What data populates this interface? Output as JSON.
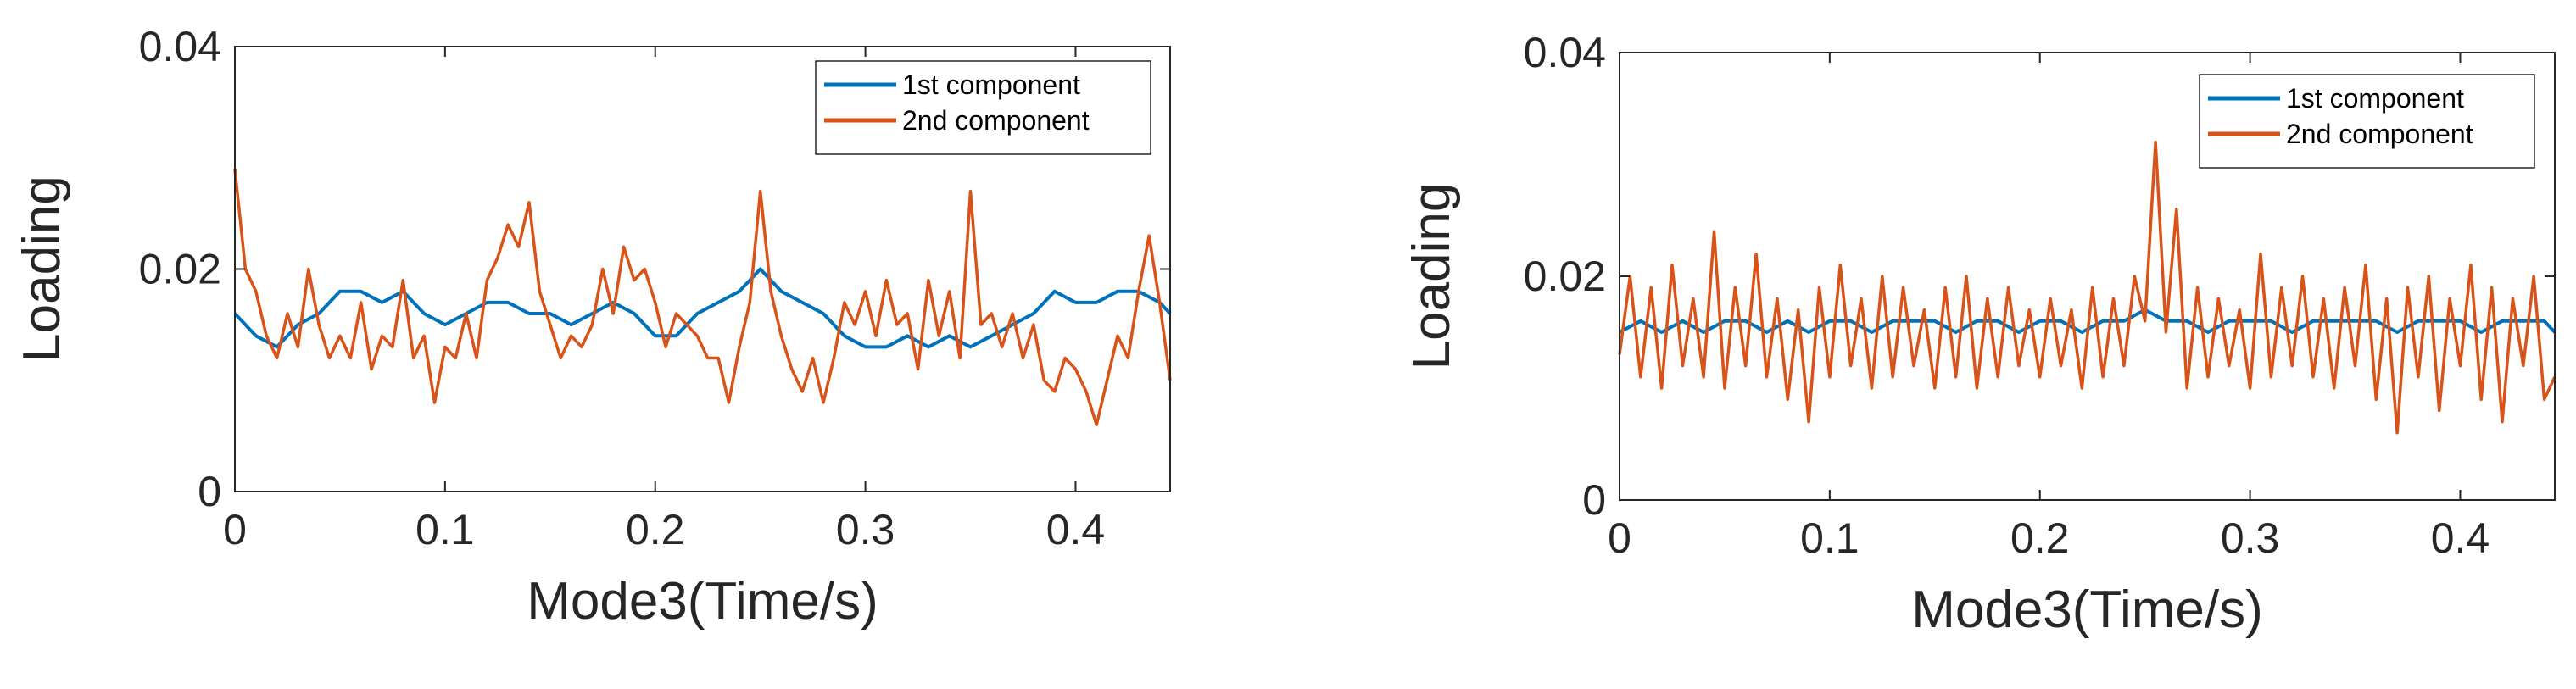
{
  "colors": {
    "series1": "#0072BD",
    "series2": "#D95319",
    "axis": "#262626"
  },
  "chart_data": [
    {
      "type": "line",
      "title": "",
      "xlabel": "Mode3(Time/s)",
      "ylabel": "Loading",
      "xlim": [
        0,
        0.445
      ],
      "ylim": [
        0,
        0.04
      ],
      "xticks": [
        0,
        0.1,
        0.2,
        0.3,
        0.4
      ],
      "xtick_labels": [
        "0",
        "0.1",
        "0.2",
        "0.3",
        "0.4"
      ],
      "yticks": [
        0,
        0.02,
        0.04
      ],
      "ytick_labels": [
        "0",
        "0.02",
        "0.04"
      ],
      "grid": false,
      "legend_position": "top-right",
      "legend": [
        "1st component",
        "2nd component"
      ],
      "series": [
        {
          "name": "1st component",
          "x": [
            0,
            0.01,
            0.02,
            0.03,
            0.04,
            0.05,
            0.06,
            0.07,
            0.08,
            0.09,
            0.1,
            0.11,
            0.12,
            0.13,
            0.14,
            0.15,
            0.16,
            0.17,
            0.18,
            0.19,
            0.2,
            0.21,
            0.22,
            0.23,
            0.24,
            0.25,
            0.26,
            0.27,
            0.28,
            0.29,
            0.3,
            0.31,
            0.32,
            0.33,
            0.34,
            0.35,
            0.36,
            0.37,
            0.38,
            0.39,
            0.4,
            0.41,
            0.42,
            0.43,
            0.44,
            0.445
          ],
          "y": [
            0.016,
            0.014,
            0.013,
            0.015,
            0.016,
            0.018,
            0.018,
            0.017,
            0.018,
            0.016,
            0.015,
            0.016,
            0.017,
            0.017,
            0.016,
            0.016,
            0.015,
            0.016,
            0.017,
            0.016,
            0.014,
            0.014,
            0.016,
            0.017,
            0.018,
            0.02,
            0.018,
            0.017,
            0.016,
            0.014,
            0.013,
            0.013,
            0.014,
            0.013,
            0.014,
            0.013,
            0.014,
            0.015,
            0.016,
            0.018,
            0.017,
            0.017,
            0.018,
            0.018,
            0.017,
            0.016
          ]
        },
        {
          "name": "2nd component",
          "x": [
            0,
            0.005,
            0.01,
            0.015,
            0.02,
            0.025,
            0.03,
            0.035,
            0.04,
            0.045,
            0.05,
            0.055,
            0.06,
            0.065,
            0.07,
            0.075,
            0.08,
            0.085,
            0.09,
            0.095,
            0.1,
            0.105,
            0.11,
            0.115,
            0.12,
            0.125,
            0.13,
            0.135,
            0.14,
            0.145,
            0.15,
            0.155,
            0.16,
            0.165,
            0.17,
            0.175,
            0.18,
            0.185,
            0.19,
            0.195,
            0.2,
            0.205,
            0.21,
            0.215,
            0.22,
            0.225,
            0.23,
            0.235,
            0.24,
            0.245,
            0.25,
            0.255,
            0.26,
            0.265,
            0.27,
            0.275,
            0.28,
            0.285,
            0.29,
            0.295,
            0.3,
            0.305,
            0.31,
            0.315,
            0.32,
            0.325,
            0.33,
            0.335,
            0.34,
            0.345,
            0.35,
            0.355,
            0.36,
            0.365,
            0.37,
            0.375,
            0.38,
            0.385,
            0.39,
            0.395,
            0.4,
            0.405,
            0.41,
            0.415,
            0.42,
            0.425,
            0.43,
            0.435,
            0.44,
            0.445
          ],
          "y": [
            0.029,
            0.02,
            0.018,
            0.014,
            0.012,
            0.016,
            0.013,
            0.02,
            0.015,
            0.012,
            0.014,
            0.012,
            0.017,
            0.011,
            0.014,
            0.013,
            0.019,
            0.012,
            0.014,
            0.008,
            0.013,
            0.012,
            0.016,
            0.012,
            0.019,
            0.021,
            0.024,
            0.022,
            0.026,
            0.018,
            0.015,
            0.012,
            0.014,
            0.013,
            0.015,
            0.02,
            0.016,
            0.022,
            0.019,
            0.02,
            0.017,
            0.013,
            0.016,
            0.015,
            0.014,
            0.012,
            0.012,
            0.008,
            0.013,
            0.017,
            0.027,
            0.018,
            0.014,
            0.011,
            0.009,
            0.012,
            0.008,
            0.012,
            0.017,
            0.015,
            0.018,
            0.014,
            0.019,
            0.015,
            0.016,
            0.011,
            0.019,
            0.014,
            0.018,
            0.012,
            0.027,
            0.015,
            0.016,
            0.013,
            0.016,
            0.012,
            0.015,
            0.01,
            0.009,
            0.012,
            0.011,
            0.009,
            0.006,
            0.01,
            0.014,
            0.012,
            0.018,
            0.023,
            0.017,
            0.01
          ]
        }
      ]
    },
    {
      "type": "line",
      "title": "",
      "xlabel": "Mode3(Time/s)",
      "ylabel": "Loading",
      "xlim": [
        0,
        0.445
      ],
      "ylim": [
        0,
        0.04
      ],
      "xticks": [
        0,
        0.1,
        0.2,
        0.3,
        0.4
      ],
      "xtick_labels": [
        "0",
        "0.1",
        "0.2",
        "0.3",
        "0.4"
      ],
      "yticks": [
        0,
        0.02,
        0.04
      ],
      "ytick_labels": [
        "0",
        "0.02",
        "0.04"
      ],
      "grid": false,
      "legend_position": "top-right",
      "legend": [
        "1st component",
        "2nd component"
      ],
      "series": [
        {
          "name": "1st component",
          "x": [
            0,
            0.01,
            0.02,
            0.03,
            0.04,
            0.05,
            0.06,
            0.07,
            0.08,
            0.09,
            0.1,
            0.11,
            0.12,
            0.13,
            0.14,
            0.15,
            0.16,
            0.17,
            0.18,
            0.19,
            0.2,
            0.21,
            0.22,
            0.23,
            0.24,
            0.25,
            0.26,
            0.27,
            0.28,
            0.29,
            0.3,
            0.31,
            0.32,
            0.33,
            0.34,
            0.35,
            0.36,
            0.37,
            0.38,
            0.39,
            0.4,
            0.41,
            0.42,
            0.43,
            0.44,
            0.445
          ],
          "y": [
            0.015,
            0.016,
            0.015,
            0.016,
            0.015,
            0.016,
            0.016,
            0.015,
            0.016,
            0.015,
            0.016,
            0.016,
            0.015,
            0.016,
            0.016,
            0.016,
            0.015,
            0.016,
            0.016,
            0.015,
            0.016,
            0.016,
            0.015,
            0.016,
            0.016,
            0.017,
            0.016,
            0.016,
            0.015,
            0.016,
            0.016,
            0.016,
            0.015,
            0.016,
            0.016,
            0.016,
            0.016,
            0.015,
            0.016,
            0.016,
            0.016,
            0.015,
            0.016,
            0.016,
            0.016,
            0.015
          ]
        },
        {
          "name": "2nd component",
          "x": [
            0,
            0.005,
            0.01,
            0.015,
            0.02,
            0.025,
            0.03,
            0.035,
            0.04,
            0.045,
            0.05,
            0.055,
            0.06,
            0.065,
            0.07,
            0.075,
            0.08,
            0.085,
            0.09,
            0.095,
            0.1,
            0.105,
            0.11,
            0.115,
            0.12,
            0.125,
            0.13,
            0.135,
            0.14,
            0.145,
            0.15,
            0.155,
            0.16,
            0.165,
            0.17,
            0.175,
            0.18,
            0.185,
            0.19,
            0.195,
            0.2,
            0.205,
            0.21,
            0.215,
            0.22,
            0.225,
            0.23,
            0.235,
            0.24,
            0.245,
            0.25,
            0.255,
            0.26,
            0.265,
            0.27,
            0.275,
            0.28,
            0.285,
            0.29,
            0.295,
            0.3,
            0.305,
            0.31,
            0.315,
            0.32,
            0.325,
            0.33,
            0.335,
            0.34,
            0.345,
            0.35,
            0.355,
            0.36,
            0.365,
            0.37,
            0.375,
            0.38,
            0.385,
            0.39,
            0.395,
            0.4,
            0.405,
            0.41,
            0.415,
            0.42,
            0.425,
            0.43,
            0.435,
            0.44,
            0.445
          ],
          "y": [
            0.013,
            0.02,
            0.011,
            0.019,
            0.01,
            0.021,
            0.012,
            0.018,
            0.011,
            0.024,
            0.01,
            0.019,
            0.012,
            0.022,
            0.011,
            0.018,
            0.009,
            0.017,
            0.007,
            0.019,
            0.011,
            0.021,
            0.012,
            0.018,
            0.01,
            0.02,
            0.011,
            0.019,
            0.012,
            0.017,
            0.01,
            0.019,
            0.011,
            0.02,
            0.01,
            0.018,
            0.011,
            0.019,
            0.012,
            0.017,
            0.011,
            0.018,
            0.012,
            0.017,
            0.01,
            0.019,
            0.011,
            0.018,
            0.012,
            0.02,
            0.016,
            0.032,
            0.015,
            0.026,
            0.01,
            0.019,
            0.011,
            0.018,
            0.012,
            0.017,
            0.01,
            0.022,
            0.011,
            0.019,
            0.012,
            0.02,
            0.011,
            0.018,
            0.01,
            0.019,
            0.012,
            0.021,
            0.009,
            0.018,
            0.006,
            0.019,
            0.011,
            0.02,
            0.008,
            0.018,
            0.012,
            0.021,
            0.009,
            0.019,
            0.007,
            0.018,
            0.012,
            0.02,
            0.009,
            0.011
          ]
        }
      ]
    }
  ]
}
